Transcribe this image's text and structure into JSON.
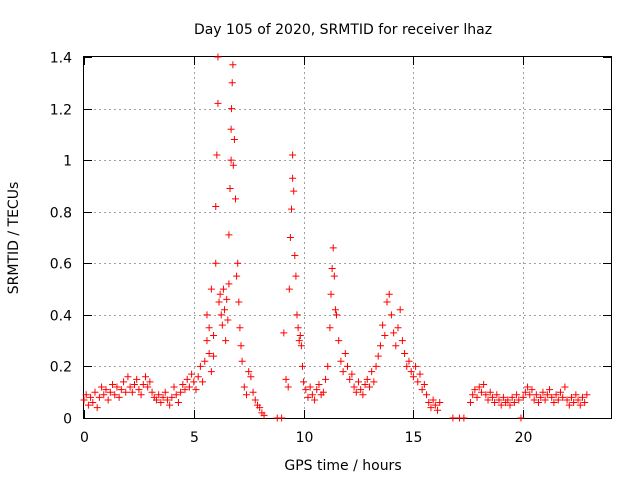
{
  "chart_data": {
    "type": "scatter",
    "title": "Day 105 of 2020, SRMTID for receiver lhaz",
    "xlabel": "GPS time / hours",
    "ylabel": "SRMTID / TECUs",
    "xlim": [
      0,
      24
    ],
    "ylim": [
      0,
      1.4
    ],
    "xticks": [
      0,
      5,
      10,
      15,
      20
    ],
    "yticks": [
      0,
      0.2,
      0.4,
      0.6,
      0.8,
      1,
      1.2,
      1.4
    ],
    "grid": true,
    "legend": "none",
    "marker": "plus",
    "color": "#ff0000",
    "series": [
      {
        "name": "SRMTID",
        "points": [
          [
            0.0,
            0.07
          ],
          [
            0.1,
            0.09
          ],
          [
            0.2,
            0.05
          ],
          [
            0.3,
            0.08
          ],
          [
            0.4,
            0.06
          ],
          [
            0.5,
            0.1
          ],
          [
            0.6,
            0.04
          ],
          [
            0.7,
            0.08
          ],
          [
            0.8,
            0.12
          ],
          [
            0.9,
            0.09
          ],
          [
            1.0,
            0.11
          ],
          [
            1.1,
            0.07
          ],
          [
            1.2,
            0.1
          ],
          [
            1.3,
            0.13
          ],
          [
            1.4,
            0.09
          ],
          [
            1.5,
            0.12
          ],
          [
            1.6,
            0.08
          ],
          [
            1.7,
            0.11
          ],
          [
            1.8,
            0.14
          ],
          [
            1.9,
            0.1
          ],
          [
            2.0,
            0.16
          ],
          [
            2.1,
            0.12
          ],
          [
            2.2,
            0.1
          ],
          [
            2.3,
            0.13
          ],
          [
            2.4,
            0.15
          ],
          [
            2.5,
            0.11
          ],
          [
            2.6,
            0.09
          ],
          [
            2.7,
            0.13
          ],
          [
            2.8,
            0.16
          ],
          [
            2.9,
            0.12
          ],
          [
            3.0,
            0.14
          ],
          [
            3.1,
            0.1
          ],
          [
            3.2,
            0.08
          ],
          [
            3.3,
            0.07
          ],
          [
            3.4,
            0.09
          ],
          [
            3.5,
            0.06
          ],
          [
            3.6,
            0.08
          ],
          [
            3.7,
            0.1
          ],
          [
            3.8,
            0.07
          ],
          [
            3.9,
            0.05
          ],
          [
            4.0,
            0.08
          ],
          [
            4.1,
            0.12
          ],
          [
            4.2,
            0.09
          ],
          [
            4.3,
            0.06
          ],
          [
            4.4,
            0.1
          ],
          [
            4.5,
            0.13
          ],
          [
            4.6,
            0.11
          ],
          [
            4.7,
            0.15
          ],
          [
            4.8,
            0.12
          ],
          [
            4.9,
            0.17
          ],
          [
            5.0,
            0.14
          ],
          [
            5.1,
            0.11
          ],
          [
            5.2,
            0.16
          ],
          [
            5.3,
            0.2
          ],
          [
            5.4,
            0.14
          ],
          [
            5.5,
            0.22
          ],
          [
            5.6,
            0.3
          ],
          [
            5.7,
            0.25
          ],
          [
            5.8,
            0.18
          ],
          [
            5.9,
            0.24
          ],
          [
            5.6,
            0.4
          ],
          [
            5.7,
            0.35
          ],
          [
            5.8,
            0.5
          ],
          [
            5.9,
            0.32
          ],
          [
            6.0,
            0.6
          ],
          [
            6.0,
            0.82
          ],
          [
            6.05,
            1.02
          ],
          [
            6.1,
            1.22
          ],
          [
            6.1,
            1.4
          ],
          [
            6.15,
            0.45
          ],
          [
            6.2,
            0.48
          ],
          [
            6.25,
            0.4
          ],
          [
            6.3,
            0.36
          ],
          [
            6.35,
            0.5
          ],
          [
            6.4,
            0.42
          ],
          [
            6.45,
            0.3
          ],
          [
            6.5,
            0.46
          ],
          [
            6.55,
            0.38
          ],
          [
            6.6,
            0.52
          ],
          [
            6.6,
            0.71
          ],
          [
            6.65,
            0.89
          ],
          [
            6.7,
            1.0
          ],
          [
            6.7,
            1.12
          ],
          [
            6.72,
            1.2
          ],
          [
            6.75,
            1.3
          ],
          [
            6.78,
            1.37
          ],
          [
            6.8,
            0.98
          ],
          [
            6.85,
            1.08
          ],
          [
            6.9,
            0.85
          ],
          [
            6.95,
            0.55
          ],
          [
            7.0,
            0.6
          ],
          [
            7.05,
            0.45
          ],
          [
            7.1,
            0.35
          ],
          [
            7.15,
            0.28
          ],
          [
            7.2,
            0.22
          ],
          [
            7.3,
            0.12
          ],
          [
            7.4,
            0.09
          ],
          [
            7.5,
            0.18
          ],
          [
            7.6,
            0.16
          ],
          [
            7.7,
            0.1
          ],
          [
            7.8,
            0.07
          ],
          [
            7.9,
            0.05
          ],
          [
            8.0,
            0.04
          ],
          [
            8.1,
            0.02
          ],
          [
            8.2,
            0.01
          ],
          [
            8.8,
            0.0
          ],
          [
            9.0,
            0.0
          ],
          [
            9.1,
            0.33
          ],
          [
            9.2,
            0.15
          ],
          [
            9.3,
            0.12
          ],
          [
            9.35,
            0.5
          ],
          [
            9.4,
            0.7
          ],
          [
            9.45,
            0.81
          ],
          [
            9.5,
            0.93
          ],
          [
            9.5,
            1.02
          ],
          [
            9.55,
            0.88
          ],
          [
            9.6,
            0.63
          ],
          [
            9.65,
            0.55
          ],
          [
            9.7,
            0.4
          ],
          [
            9.75,
            0.35
          ],
          [
            9.8,
            0.3
          ],
          [
            9.85,
            0.32
          ],
          [
            9.9,
            0.28
          ],
          [
            9.95,
            0.2
          ],
          [
            10.0,
            0.14
          ],
          [
            10.1,
            0.11
          ],
          [
            10.2,
            0.08
          ],
          [
            10.3,
            0.12
          ],
          [
            10.4,
            0.09
          ],
          [
            10.5,
            0.07
          ],
          [
            10.6,
            0.11
          ],
          [
            10.7,
            0.13
          ],
          [
            10.8,
            0.09
          ],
          [
            10.9,
            0.1
          ],
          [
            11.0,
            0.15
          ],
          [
            11.1,
            0.2
          ],
          [
            11.2,
            0.35
          ],
          [
            11.25,
            0.48
          ],
          [
            11.3,
            0.58
          ],
          [
            11.35,
            0.66
          ],
          [
            11.4,
            0.55
          ],
          [
            11.45,
            0.42
          ],
          [
            11.5,
            0.4
          ],
          [
            11.6,
            0.3
          ],
          [
            11.7,
            0.22
          ],
          [
            11.8,
            0.18
          ],
          [
            11.9,
            0.25
          ],
          [
            12.0,
            0.2
          ],
          [
            12.1,
            0.15
          ],
          [
            12.2,
            0.17
          ],
          [
            12.3,
            0.12
          ],
          [
            12.4,
            0.1
          ],
          [
            12.5,
            0.14
          ],
          [
            12.6,
            0.11
          ],
          [
            12.7,
            0.09
          ],
          [
            12.8,
            0.13
          ],
          [
            12.9,
            0.15
          ],
          [
            13.0,
            0.12
          ],
          [
            13.1,
            0.18
          ],
          [
            13.2,
            0.14
          ],
          [
            13.3,
            0.2
          ],
          [
            13.4,
            0.24
          ],
          [
            13.5,
            0.28
          ],
          [
            13.6,
            0.36
          ],
          [
            13.7,
            0.32
          ],
          [
            13.8,
            0.45
          ],
          [
            13.9,
            0.48
          ],
          [
            14.0,
            0.4
          ],
          [
            14.1,
            0.33
          ],
          [
            14.2,
            0.28
          ],
          [
            14.3,
            0.35
          ],
          [
            14.4,
            0.42
          ],
          [
            14.5,
            0.3
          ],
          [
            14.6,
            0.25
          ],
          [
            14.7,
            0.2
          ],
          [
            14.8,
            0.22
          ],
          [
            14.9,
            0.18
          ],
          [
            15.0,
            0.16
          ],
          [
            15.1,
            0.2
          ],
          [
            15.2,
            0.14
          ],
          [
            15.3,
            0.17
          ],
          [
            15.4,
            0.11
          ],
          [
            15.5,
            0.13
          ],
          [
            15.6,
            0.09
          ],
          [
            15.7,
            0.06
          ],
          [
            15.8,
            0.04
          ],
          [
            15.9,
            0.07
          ],
          [
            16.0,
            0.05
          ],
          [
            16.1,
            0.03
          ],
          [
            16.2,
            0.06
          ],
          [
            16.8,
            0.0
          ],
          [
            17.1,
            0.0
          ],
          [
            17.3,
            0.0
          ],
          [
            17.6,
            0.06
          ],
          [
            17.7,
            0.09
          ],
          [
            17.8,
            0.11
          ],
          [
            17.9,
            0.08
          ],
          [
            18.0,
            0.12
          ],
          [
            18.1,
            0.1
          ],
          [
            18.2,
            0.13
          ],
          [
            18.3,
            0.09
          ],
          [
            18.4,
            0.07
          ],
          [
            18.5,
            0.1
          ],
          [
            18.6,
            0.08
          ],
          [
            18.7,
            0.06
          ],
          [
            18.8,
            0.09
          ],
          [
            18.9,
            0.07
          ],
          [
            19.0,
            0.05
          ],
          [
            19.1,
            0.08
          ],
          [
            19.2,
            0.06
          ],
          [
            19.3,
            0.07
          ],
          [
            19.4,
            0.05
          ],
          [
            19.5,
            0.08
          ],
          [
            19.6,
            0.06
          ],
          [
            19.7,
            0.09
          ],
          [
            19.8,
            0.07
          ],
          [
            19.9,
            0.0
          ],
          [
            20.0,
            0.08
          ],
          [
            20.1,
            0.1
          ],
          [
            20.2,
            0.12
          ],
          [
            20.3,
            0.09
          ],
          [
            20.4,
            0.11
          ],
          [
            20.5,
            0.07
          ],
          [
            20.6,
            0.09
          ],
          [
            20.7,
            0.06
          ],
          [
            20.8,
            0.08
          ],
          [
            20.9,
            0.1
          ],
          [
            21.0,
            0.07
          ],
          [
            21.1,
            0.09
          ],
          [
            21.2,
            0.11
          ],
          [
            21.3,
            0.08
          ],
          [
            21.4,
            0.06
          ],
          [
            21.5,
            0.09
          ],
          [
            21.6,
            0.07
          ],
          [
            21.7,
            0.1
          ],
          [
            21.8,
            0.08
          ],
          [
            21.9,
            0.12
          ],
          [
            22.0,
            0.07
          ],
          [
            22.1,
            0.05
          ],
          [
            22.2,
            0.08
          ],
          [
            22.3,
            0.06
          ],
          [
            22.4,
            0.09
          ],
          [
            22.5,
            0.07
          ],
          [
            22.6,
            0.05
          ],
          [
            22.7,
            0.08
          ],
          [
            22.8,
            0.06
          ],
          [
            22.9,
            0.09
          ]
        ]
      }
    ]
  }
}
